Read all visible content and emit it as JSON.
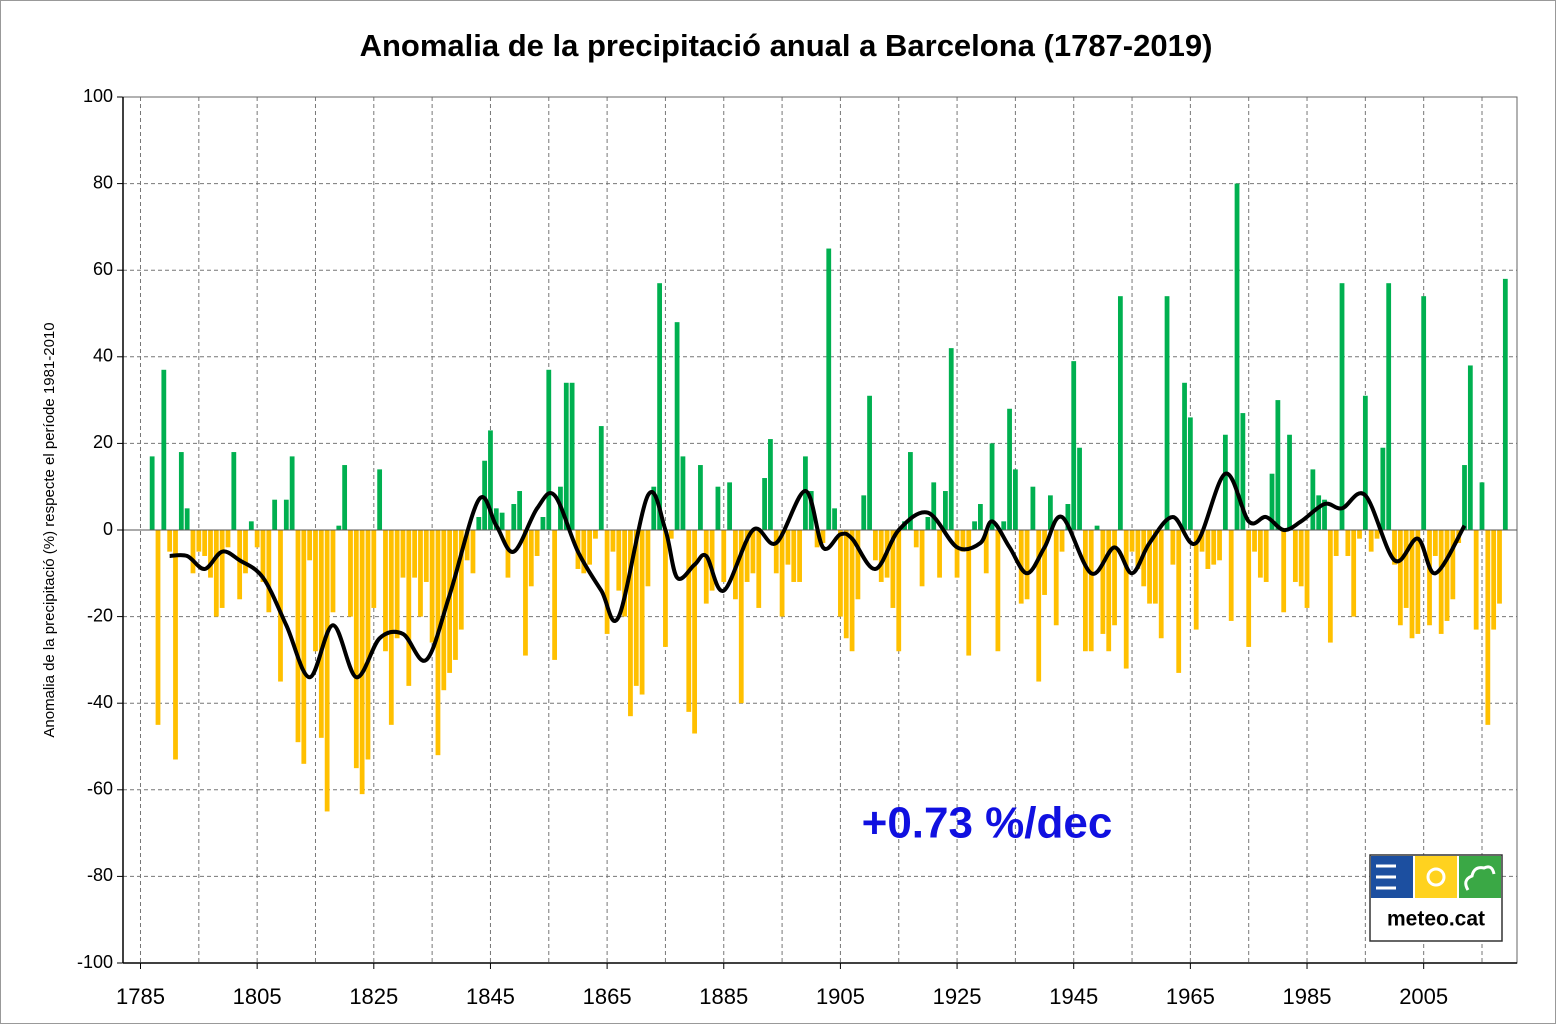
{
  "chart_data": {
    "type": "bar",
    "title": "Anomalia de la precipitació anual a Barcelona (1787-2019)",
    "ylabel": "Anomalia de la precipitació (%) respecte el període 1981-2010",
    "annotation": "+0.73 %/dec",
    "annotation_color": "#1010e0",
    "logo": "meteo.cat",
    "positive_color": "#00b050",
    "negative_color": "#ffc000",
    "grid": true,
    "xlim": [
      1782,
      2021
    ],
    "xticks": [
      1785,
      1805,
      1825,
      1845,
      1865,
      1885,
      1905,
      1925,
      1945,
      1965,
      1985,
      2005
    ],
    "x_minor_ticks": [
      1795,
      1815,
      1835,
      1855,
      1875,
      1895,
      1915,
      1935,
      1955,
      1975,
      1995,
      2015
    ],
    "ylim": [
      -100,
      100
    ],
    "yticks": [
      -100,
      -80,
      -60,
      -40,
      -20,
      0,
      20,
      40,
      60,
      80,
      100
    ],
    "x": [
      1787,
      1788,
      1789,
      1790,
      1791,
      1792,
      1793,
      1794,
      1795,
      1796,
      1797,
      1798,
      1799,
      1800,
      1801,
      1802,
      1803,
      1804,
      1805,
      1806,
      1807,
      1808,
      1809,
      1810,
      1811,
      1812,
      1813,
      1814,
      1815,
      1816,
      1817,
      1818,
      1819,
      1820,
      1821,
      1822,
      1823,
      1824,
      1825,
      1826,
      1827,
      1828,
      1829,
      1830,
      1831,
      1832,
      1833,
      1834,
      1835,
      1836,
      1837,
      1838,
      1839,
      1840,
      1841,
      1842,
      1843,
      1844,
      1845,
      1846,
      1847,
      1848,
      1849,
      1850,
      1851,
      1852,
      1853,
      1854,
      1855,
      1856,
      1857,
      1858,
      1859,
      1860,
      1861,
      1862,
      1863,
      1864,
      1865,
      1866,
      1867,
      1868,
      1869,
      1870,
      1871,
      1872,
      1873,
      1874,
      1875,
      1876,
      1877,
      1878,
      1879,
      1880,
      1881,
      1882,
      1883,
      1884,
      1885,
      1886,
      1887,
      1888,
      1889,
      1890,
      1891,
      1892,
      1893,
      1894,
      1895,
      1896,
      1897,
      1898,
      1899,
      1900,
      1901,
      1902,
      1903,
      1904,
      1905,
      1906,
      1907,
      1908,
      1909,
      1910,
      1911,
      1912,
      1913,
      1914,
      1915,
      1916,
      1917,
      1918,
      1919,
      1920,
      1921,
      1922,
      1923,
      1924,
      1925,
      1926,
      1927,
      1928,
      1929,
      1930,
      1931,
      1932,
      1933,
      1934,
      1935,
      1936,
      1937,
      1938,
      1939,
      1940,
      1941,
      1942,
      1943,
      1944,
      1945,
      1946,
      1947,
      1948,
      1949,
      1950,
      1951,
      1952,
      1953,
      1954,
      1955,
      1956,
      1957,
      1958,
      1959,
      1960,
      1961,
      1962,
      1963,
      1964,
      1965,
      1966,
      1967,
      1968,
      1969,
      1970,
      1971,
      1972,
      1973,
      1974,
      1975,
      1976,
      1977,
      1978,
      1979,
      1980,
      1981,
      1982,
      1983,
      1984,
      1985,
      1986,
      1987,
      1988,
      1989,
      1990,
      1991,
      1992,
      1993,
      1994,
      1995,
      1996,
      1997,
      1998,
      1999,
      2000,
      2001,
      2002,
      2003,
      2004,
      2005,
      2006,
      2007,
      2008,
      2009,
      2010,
      2011,
      2012,
      2013,
      2014,
      2015,
      2016,
      2017,
      2018,
      2019
    ],
    "values": [
      17,
      -45,
      37,
      -5,
      -53,
      18,
      5,
      -10,
      -5,
      -6,
      -11,
      -20,
      -18,
      -4,
      18,
      -16,
      -10,
      2,
      -4,
      -12,
      -19,
      7,
      -35,
      7,
      17,
      -49,
      -54,
      -7,
      -28,
      -48,
      -65,
      -19,
      1,
      15,
      -20,
      -55,
      -61,
      -53,
      -18,
      14,
      -28,
      -45,
      -25,
      -11,
      -36,
      -11,
      -20,
      -12,
      -26,
      -52,
      -37,
      -33,
      -30,
      -23,
      -7,
      -10,
      3,
      16,
      23,
      5,
      4,
      -11,
      6,
      9,
      -29,
      -13,
      -6,
      3,
      37,
      -30,
      10,
      34,
      34,
      -9,
      -10,
      -8,
      -2,
      24,
      -24,
      -5,
      -14,
      -20,
      -43,
      -36,
      -38,
      -13,
      10,
      57,
      -27,
      -2,
      48,
      17,
      -42,
      -47,
      15,
      -17,
      -14,
      10,
      -12,
      11,
      -16,
      -40,
      -12,
      -10,
      -18,
      12,
      21,
      -10,
      -20,
      -8,
      -12,
      -12,
      17,
      9,
      -4,
      -3,
      65,
      5,
      -20,
      -25,
      -28,
      -16,
      8,
      31,
      -7,
      -12,
      -11,
      -18,
      -28,
      2,
      18,
      -4,
      -13,
      3,
      11,
      -11,
      9,
      42,
      -11,
      -5,
      -29,
      2,
      6,
      -10,
      20,
      -28,
      2,
      28,
      14,
      -17,
      -16,
      10,
      -35,
      -15,
      8,
      -22,
      -5,
      6,
      39,
      19,
      -28,
      -28,
      1,
      -24,
      -28,
      -22,
      54,
      -32,
      -5,
      -9,
      -13,
      -17,
      -17,
      -25,
      54,
      -8,
      -33,
      34,
      26,
      -23,
      -5,
      -9,
      -8,
      -7,
      22,
      -21,
      80,
      27,
      -27,
      -5,
      -11,
      -12,
      13,
      30,
      -19,
      22,
      -12,
      -13,
      -18,
      14,
      8,
      7,
      -26,
      -6,
      57,
      -6,
      -20,
      -2,
      31,
      -5,
      -2,
      19,
      57,
      -8,
      -22,
      -18,
      -25,
      -24,
      54,
      -22,
      -6,
      -24,
      -21,
      -16,
      -3,
      15,
      38,
      -23,
      11,
      -45,
      -23,
      -17,
      58
    ],
    "trend_line": {
      "color": "#000000",
      "x": [
        1790,
        1793,
        1796,
        1799,
        1802,
        1806,
        1810,
        1814,
        1818,
        1822,
        1826,
        1830,
        1834,
        1838,
        1843,
        1846,
        1849,
        1853,
        1856,
        1860,
        1864,
        1867,
        1872,
        1875,
        1877,
        1880,
        1882,
        1885,
        1890,
        1894,
        1899,
        1902,
        1905,
        1907,
        1911,
        1915,
        1920,
        1925,
        1929,
        1931,
        1934,
        1937,
        1940,
        1943,
        1948,
        1952,
        1955,
        1958,
        1962,
        1966,
        1971,
        1975,
        1978,
        1981,
        1984,
        1988,
        1991,
        1995,
        2000,
        2004,
        2007,
        2012
      ],
      "values": [
        -6,
        -6,
        -9,
        -5,
        -7,
        -11,
        -22,
        -34,
        -22,
        -34,
        -25,
        -24,
        -30,
        -15,
        7,
        1,
        -5,
        5,
        8,
        -5,
        -14,
        -20,
        8,
        0,
        -11,
        -8,
        -6,
        -14,
        0,
        -3,
        9,
        -4,
        -1,
        -2,
        -9,
        0,
        4,
        -4,
        -3,
        2,
        -4,
        -10,
        -4,
        3,
        -10,
        -4,
        -10,
        -3,
        3,
        -3,
        13,
        2,
        3,
        0,
        2,
        6,
        5,
        8,
        -7,
        -2,
        -10,
        1
      ]
    }
  }
}
